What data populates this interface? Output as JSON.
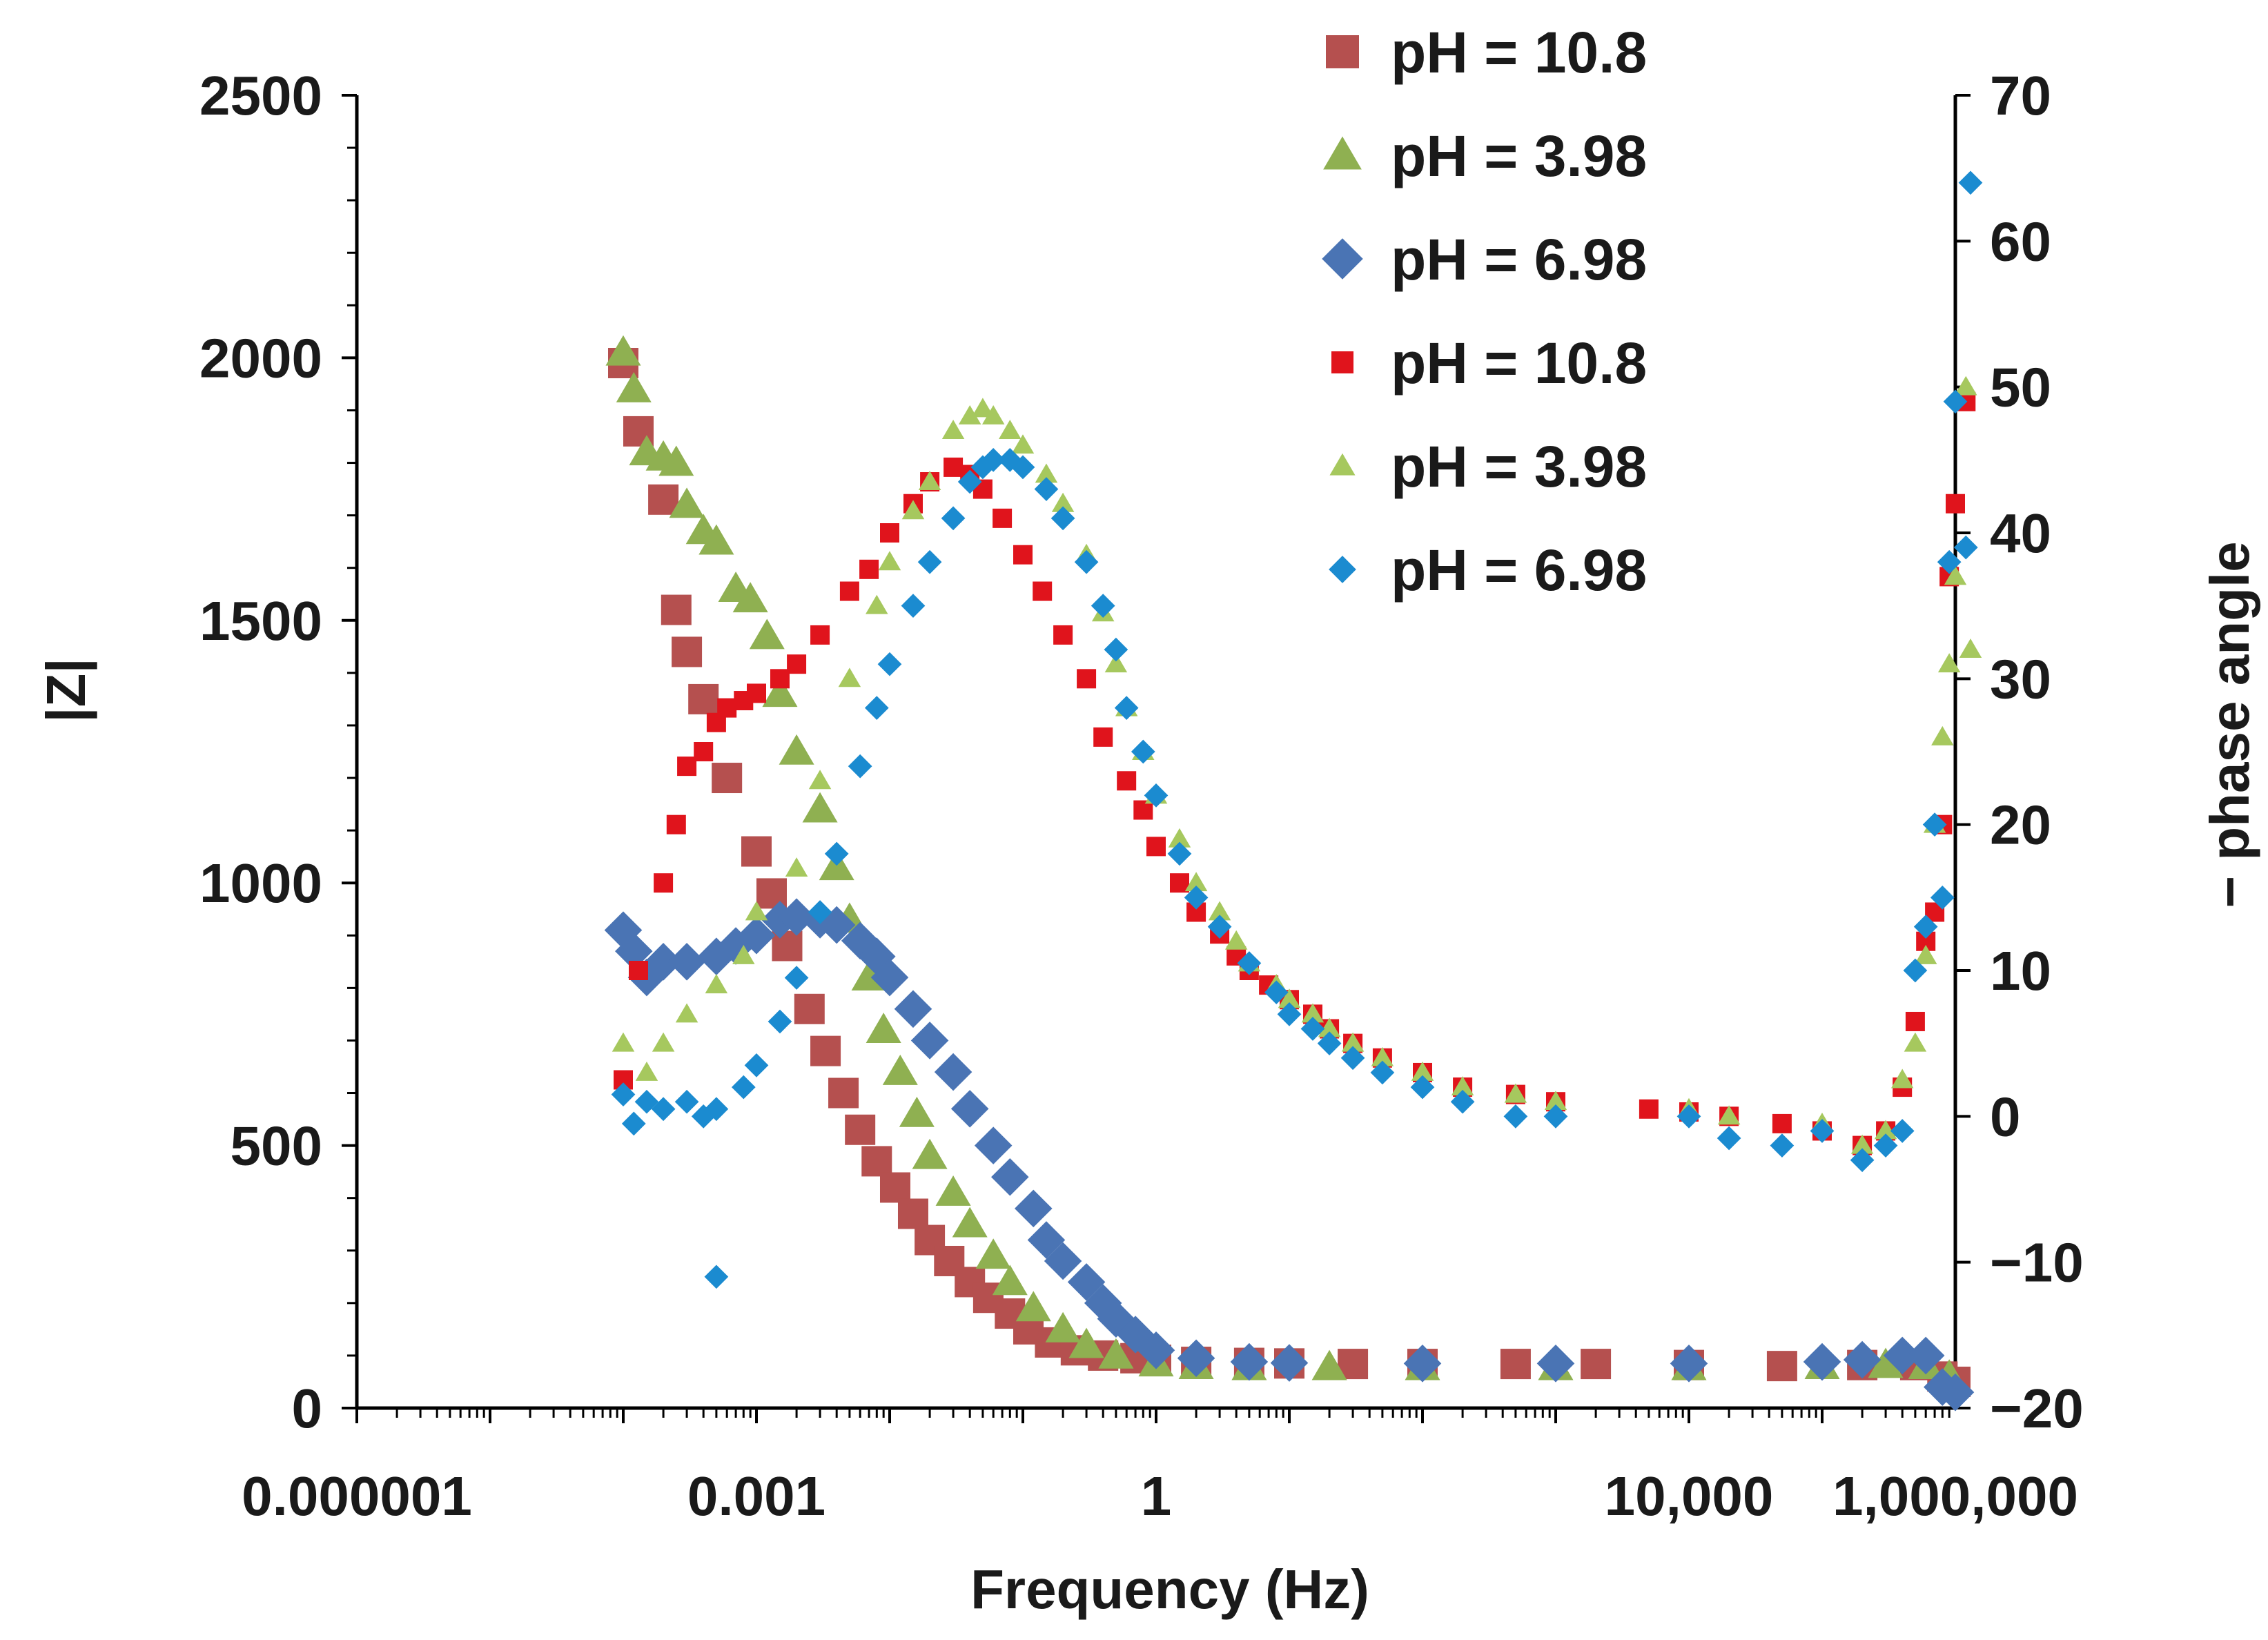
{
  "chart_data": {
    "type": "scatter",
    "xlabel": "Frequency (Hz)",
    "ylabel": "|Z|",
    "y2label": "− phase angle",
    "xscale": "log",
    "xlim": [
      1e-06,
      1000000
    ],
    "ylim": [
      0,
      2500
    ],
    "y2lim": [
      -20,
      70
    ],
    "x_tick_values": [
      1e-06,
      0.001,
      1,
      10000,
      1000000
    ],
    "x_tick_labels": [
      "0.000001",
      "0.001",
      "1",
      "10,000",
      "1,000,000"
    ],
    "y_tick_labels": [
      "0",
      "500",
      "1000",
      "1500",
      "2000",
      "2500"
    ],
    "y2_tick_labels": [
      "−20",
      "−10",
      "0",
      "10",
      "20",
      "30",
      "40",
      "50",
      "60",
      "70"
    ],
    "legend_position": "top-right",
    "series": [
      {
        "name": "pH = 10.8",
        "axis": "left",
        "marker": "square",
        "size": "large",
        "color": "#b5504f",
        "points": [
          [
            0.0001,
            1990
          ],
          [
            0.00013,
            1860
          ],
          [
            0.0002,
            1730
          ],
          [
            0.00025,
            1520
          ],
          [
            0.0003,
            1440
          ],
          [
            0.0004,
            1350
          ],
          [
            0.0006,
            1200
          ],
          [
            0.001,
            1060
          ],
          [
            0.0013,
            980
          ],
          [
            0.0017,
            880
          ],
          [
            0.0025,
            760
          ],
          [
            0.0033,
            680
          ],
          [
            0.0045,
            600
          ],
          [
            0.006,
            530
          ],
          [
            0.008,
            470
          ],
          [
            0.011,
            420
          ],
          [
            0.015,
            370
          ],
          [
            0.02,
            320
          ],
          [
            0.028,
            280
          ],
          [
            0.04,
            240
          ],
          [
            0.055,
            210
          ],
          [
            0.08,
            180
          ],
          [
            0.11,
            150
          ],
          [
            0.16,
            125
          ],
          [
            0.25,
            110
          ],
          [
            0.4,
            100
          ],
          [
            0.7,
            95
          ],
          [
            1,
            92
          ],
          [
            2,
            88
          ],
          [
            5,
            86
          ],
          [
            10,
            85
          ],
          [
            30,
            84
          ],
          [
            100,
            84
          ],
          [
            500,
            84
          ],
          [
            2000,
            84
          ],
          [
            10000,
            82
          ],
          [
            50000,
            80
          ],
          [
            200000,
            82
          ],
          [
            500000,
            82
          ],
          [
            800000,
            60
          ],
          [
            1000000,
            50
          ]
        ]
      },
      {
        "name": "pH = 3.98",
        "axis": "left",
        "marker": "triangle",
        "size": "large",
        "color": "#8fb051",
        "points": [
          [
            0.0001,
            2010
          ],
          [
            0.00012,
            1940
          ],
          [
            0.00015,
            1820
          ],
          [
            0.0002,
            1810
          ],
          [
            0.00025,
            1800
          ],
          [
            0.0003,
            1720
          ],
          [
            0.0004,
            1670
          ],
          [
            0.0005,
            1650
          ],
          [
            0.0007,
            1560
          ],
          [
            0.0009,
            1540
          ],
          [
            0.0012,
            1470
          ],
          [
            0.0015,
            1360
          ],
          [
            0.002,
            1250
          ],
          [
            0.003,
            1140
          ],
          [
            0.004,
            1030
          ],
          [
            0.005,
            930
          ],
          [
            0.007,
            820
          ],
          [
            0.009,
            720
          ],
          [
            0.012,
            640
          ],
          [
            0.016,
            560
          ],
          [
            0.02,
            480
          ],
          [
            0.03,
            410
          ],
          [
            0.04,
            350
          ],
          [
            0.06,
            290
          ],
          [
            0.08,
            240
          ],
          [
            0.12,
            190
          ],
          [
            0.2,
            150
          ],
          [
            0.3,
            120
          ],
          [
            0.5,
            100
          ],
          [
            1,
            85
          ],
          [
            2,
            80
          ],
          [
            5,
            78
          ],
          [
            20,
            78
          ],
          [
            100,
            78
          ],
          [
            1000,
            78
          ],
          [
            10000,
            78
          ],
          [
            100000,
            80
          ],
          [
            300000,
            82
          ],
          [
            600000,
            80
          ],
          [
            900000,
            60
          ]
        ]
      },
      {
        "name": "pH = 6.98",
        "axis": "left",
        "marker": "diamond",
        "size": "large",
        "color": "#4a74b4",
        "points": [
          [
            0.0001,
            910
          ],
          [
            0.00012,
            870
          ],
          [
            0.00015,
            820
          ],
          [
            0.0002,
            850
          ],
          [
            0.0003,
            850
          ],
          [
            0.0005,
            860
          ],
          [
            0.0007,
            880
          ],
          [
            0.001,
            900
          ],
          [
            0.0015,
            930
          ],
          [
            0.002,
            935
          ],
          [
            0.003,
            930
          ],
          [
            0.004,
            920
          ],
          [
            0.006,
            890
          ],
          [
            0.008,
            860
          ],
          [
            0.01,
            820
          ],
          [
            0.015,
            760
          ],
          [
            0.02,
            700
          ],
          [
            0.03,
            640
          ],
          [
            0.04,
            570
          ],
          [
            0.06,
            500
          ],
          [
            0.08,
            440
          ],
          [
            0.12,
            380
          ],
          [
            0.15,
            320
          ],
          [
            0.2,
            280
          ],
          [
            0.3,
            240
          ],
          [
            0.4,
            200
          ],
          [
            0.5,
            170
          ],
          [
            0.7,
            140
          ],
          [
            1,
            110
          ],
          [
            2,
            95
          ],
          [
            5,
            88
          ],
          [
            10,
            86
          ],
          [
            100,
            85
          ],
          [
            1000,
            85
          ],
          [
            10000,
            85
          ],
          [
            100000,
            88
          ],
          [
            200000,
            92
          ],
          [
            400000,
            100
          ],
          [
            600000,
            100
          ],
          [
            800000,
            40
          ],
          [
            1000000,
            30
          ]
        ]
      },
      {
        "name": "pH = 10.8",
        "axis": "right",
        "marker": "square",
        "size": "small",
        "color": "#e0141c",
        "points": [
          [
            0.00013,
            10
          ],
          [
            0.0001,
            2.5
          ],
          [
            0.0002,
            16
          ],
          [
            0.00025,
            20
          ],
          [
            0.0003,
            24
          ],
          [
            0.0004,
            25
          ],
          [
            0.0005,
            27
          ],
          [
            0.0006,
            28
          ],
          [
            0.0008,
            28.5
          ],
          [
            0.001,
            29
          ],
          [
            0.0015,
            30
          ],
          [
            0.002,
            31
          ],
          [
            0.003,
            33
          ],
          [
            0.005,
            36
          ],
          [
            0.007,
            37.5
          ],
          [
            0.01,
            40
          ],
          [
            0.015,
            42
          ],
          [
            0.02,
            43.5
          ],
          [
            0.03,
            44.5
          ],
          [
            0.04,
            44
          ],
          [
            0.05,
            43
          ],
          [
            0.07,
            41
          ],
          [
            0.1,
            38.5
          ],
          [
            0.14,
            36
          ],
          [
            0.2,
            33
          ],
          [
            0.3,
            30
          ],
          [
            0.4,
            26
          ],
          [
            0.6,
            23
          ],
          [
            0.8,
            21
          ],
          [
            1,
            18.5
          ],
          [
            1.5,
            16
          ],
          [
            2,
            14
          ],
          [
            3,
            12.5
          ],
          [
            4,
            11
          ],
          [
            5,
            10
          ],
          [
            7,
            9
          ],
          [
            10,
            8
          ],
          [
            15,
            7
          ],
          [
            20,
            6
          ],
          [
            30,
            5
          ],
          [
            50,
            4
          ],
          [
            100,
            3
          ],
          [
            200,
            2
          ],
          [
            500,
            1.5
          ],
          [
            1000,
            1
          ],
          [
            5000,
            0.5
          ],
          [
            10000,
            0.3
          ],
          [
            20000,
            0
          ],
          [
            50000,
            -0.5
          ],
          [
            100000,
            -1
          ],
          [
            200000,
            -2
          ],
          [
            300000,
            -1
          ],
          [
            400000,
            2
          ],
          [
            500000,
            6.5
          ],
          [
            600000,
            12
          ],
          [
            700000,
            14
          ],
          [
            800000,
            20
          ],
          [
            900000,
            37
          ],
          [
            1000000,
            42
          ],
          [
            1200000,
            49
          ]
        ]
      },
      {
        "name": "pH = 3.98",
        "axis": "right",
        "marker": "triangle",
        "size": "small",
        "color": "#a6c85e",
        "points": [
          [
            0.0001,
            5
          ],
          [
            0.00015,
            3
          ],
          [
            0.0002,
            5
          ],
          [
            0.0003,
            7
          ],
          [
            0.0005,
            9
          ],
          [
            0.0008,
            11
          ],
          [
            0.001,
            14
          ],
          [
            0.002,
            17
          ],
          [
            0.003,
            23
          ],
          [
            0.005,
            30
          ],
          [
            0.008,
            35
          ],
          [
            0.01,
            38
          ],
          [
            0.015,
            41.5
          ],
          [
            0.02,
            43.5
          ],
          [
            0.03,
            47
          ],
          [
            0.04,
            48
          ],
          [
            0.05,
            48.5
          ],
          [
            0.06,
            48
          ],
          [
            0.08,
            47
          ],
          [
            0.1,
            46
          ],
          [
            0.15,
            44
          ],
          [
            0.2,
            42
          ],
          [
            0.3,
            38.5
          ],
          [
            0.4,
            34.5
          ],
          [
            0.5,
            31
          ],
          [
            0.6,
            28
          ],
          [
            0.8,
            25
          ],
          [
            1,
            22
          ],
          [
            1.5,
            19
          ],
          [
            2,
            16
          ],
          [
            3,
            14
          ],
          [
            4,
            12
          ],
          [
            5,
            10.5
          ],
          [
            8,
            9
          ],
          [
            10,
            8
          ],
          [
            15,
            7
          ],
          [
            20,
            6
          ],
          [
            30,
            5
          ],
          [
            50,
            4
          ],
          [
            100,
            3
          ],
          [
            200,
            2
          ],
          [
            500,
            1.5
          ],
          [
            1000,
            1
          ],
          [
            10000,
            0.5
          ],
          [
            20000,
            0
          ],
          [
            100000,
            -0.5
          ],
          [
            200000,
            -2
          ],
          [
            300000,
            -1
          ],
          [
            400000,
            2.5
          ],
          [
            500000,
            5
          ],
          [
            600000,
            11
          ],
          [
            700000,
            20
          ],
          [
            800000,
            26
          ],
          [
            900000,
            31
          ],
          [
            1000000,
            37
          ],
          [
            1200000,
            50
          ],
          [
            1300000,
            32
          ]
        ]
      },
      {
        "name": "pH = 6.98",
        "axis": "right",
        "marker": "diamond",
        "size": "small",
        "color": "#1b8bd0",
        "points": [
          [
            0.0001,
            1.5
          ],
          [
            0.00012,
            -0.5
          ],
          [
            0.00015,
            1
          ],
          [
            0.0002,
            0.5
          ],
          [
            0.0003,
            1
          ],
          [
            0.0004,
            0
          ],
          [
            0.0005,
            0.5
          ],
          [
            0.0008,
            2
          ],
          [
            0.001,
            3.5
          ],
          [
            0.0015,
            6.5
          ],
          [
            0.002,
            9.5
          ],
          [
            0.003,
            14
          ],
          [
            0.004,
            18
          ],
          [
            0.006,
            24
          ],
          [
            0.008,
            28
          ],
          [
            0.01,
            31
          ],
          [
            0.015,
            35
          ],
          [
            0.02,
            38
          ],
          [
            0.03,
            41
          ],
          [
            0.04,
            43.5
          ],
          [
            0.05,
            44.5
          ],
          [
            0.06,
            45
          ],
          [
            0.08,
            45
          ],
          [
            0.1,
            44.5
          ],
          [
            0.15,
            43
          ],
          [
            0.2,
            41
          ],
          [
            0.3,
            38
          ],
          [
            0.4,
            35
          ],
          [
            0.5,
            32
          ],
          [
            0.6,
            28
          ],
          [
            0.8,
            25
          ],
          [
            1,
            22
          ],
          [
            1.5,
            18
          ],
          [
            2,
            15
          ],
          [
            3,
            13
          ],
          [
            5,
            10.5
          ],
          [
            8,
            8.5
          ],
          [
            10,
            7
          ],
          [
            15,
            6
          ],
          [
            20,
            5
          ],
          [
            30,
            4
          ],
          [
            50,
            3
          ],
          [
            100,
            2
          ],
          [
            200,
            1
          ],
          [
            500,
            0
          ],
          [
            1000,
            0
          ],
          [
            10000,
            0
          ],
          [
            20000,
            -1.5
          ],
          [
            50000,
            -2
          ],
          [
            100000,
            -1
          ],
          [
            200000,
            -3
          ],
          [
            300000,
            -2
          ],
          [
            400000,
            -1
          ],
          [
            500000,
            10
          ],
          [
            600000,
            13
          ],
          [
            700000,
            20
          ],
          [
            800000,
            15
          ],
          [
            900000,
            38
          ],
          [
            1000000,
            49
          ],
          [
            1200000,
            39
          ],
          [
            1300000,
            64
          ],
          [
            0.0005,
            -11
          ]
        ]
      }
    ]
  }
}
